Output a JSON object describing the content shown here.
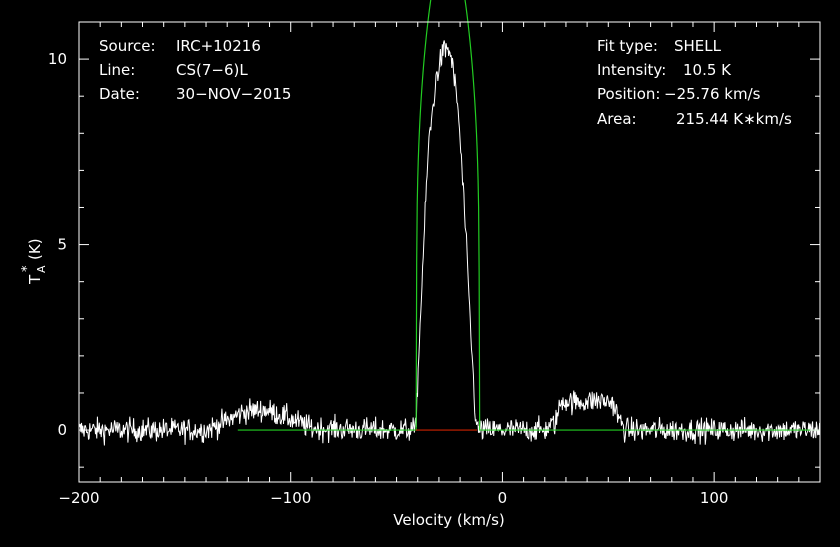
{
  "header": {
    "left": [
      {
        "key": "Source:",
        "value": "IRC+10216"
      },
      {
        "key": "Line:",
        "value": "CS(7−6)L"
      },
      {
        "key": "Date:",
        "value": "30−NOV−2015"
      }
    ],
    "right": [
      {
        "key": "Fit type:",
        "value": "SHELL"
      },
      {
        "key": "Intensity:",
        "value": "10.5 K"
      },
      {
        "key": "Position:",
        "value": "−25.76 km/s"
      },
      {
        "key": "Area:",
        "value": "215.44 K∗km/s"
      }
    ]
  },
  "chart_data": {
    "type": "line",
    "title": "",
    "xlabel": "Velocity (km/s)",
    "ylabel_main": "T",
    "ylabel_sup": "*",
    "ylabel_sub": "A",
    "ylabel_unit": "(K)",
    "xlim": [
      -200,
      150
    ],
    "ylim": [
      -1.4,
      11
    ],
    "xticks": [
      -200,
      -100,
      0,
      100
    ],
    "xtick_labels": [
      "−200",
      "−100",
      "0",
      "100"
    ],
    "yticks": [
      0,
      5,
      10
    ],
    "ytick_labels": [
      "0",
      "5",
      "10"
    ],
    "grid": false,
    "colors": {
      "background": "#000000",
      "axes": "#ffffff",
      "spectrum": "#ffffff",
      "fit": "#22cc22",
      "baseline": "#cc2200"
    },
    "series": [
      {
        "key": "spectrum",
        "noise_rms": 0.16,
        "x": [
          -200,
          -140,
          -130,
          -122,
          -112,
          -100,
          -90,
          -60,
          -45,
          -41,
          -38,
          -35,
          -31,
          -28,
          -25.8,
          -24,
          -21,
          -18,
          -15,
          -13,
          -12,
          0,
          20,
          25,
          28,
          35,
          45,
          52,
          55,
          58,
          70,
          100,
          150
        ],
        "y": [
          0,
          0,
          0.25,
          0.5,
          0.55,
          0.3,
          0.05,
          0,
          0,
          0,
          4.0,
          7.6,
          9.6,
          10.2,
          10.3,
          10.0,
          8.7,
          6.0,
          2.7,
          0.6,
          0,
          0,
          0,
          0.2,
          0.8,
          0.75,
          0.8,
          0.75,
          0.3,
          0,
          0,
          0,
          0
        ]
      },
      {
        "key": "fit",
        "shell": {
          "center": -25.76,
          "half_width": 14.8,
          "peak": 10.5,
          "horn": -0.2
        },
        "x_range": [
          -125,
          150
        ]
      }
    ],
    "baseline_segment": {
      "x": [
        -41,
        -12
      ],
      "y": 0
    }
  }
}
